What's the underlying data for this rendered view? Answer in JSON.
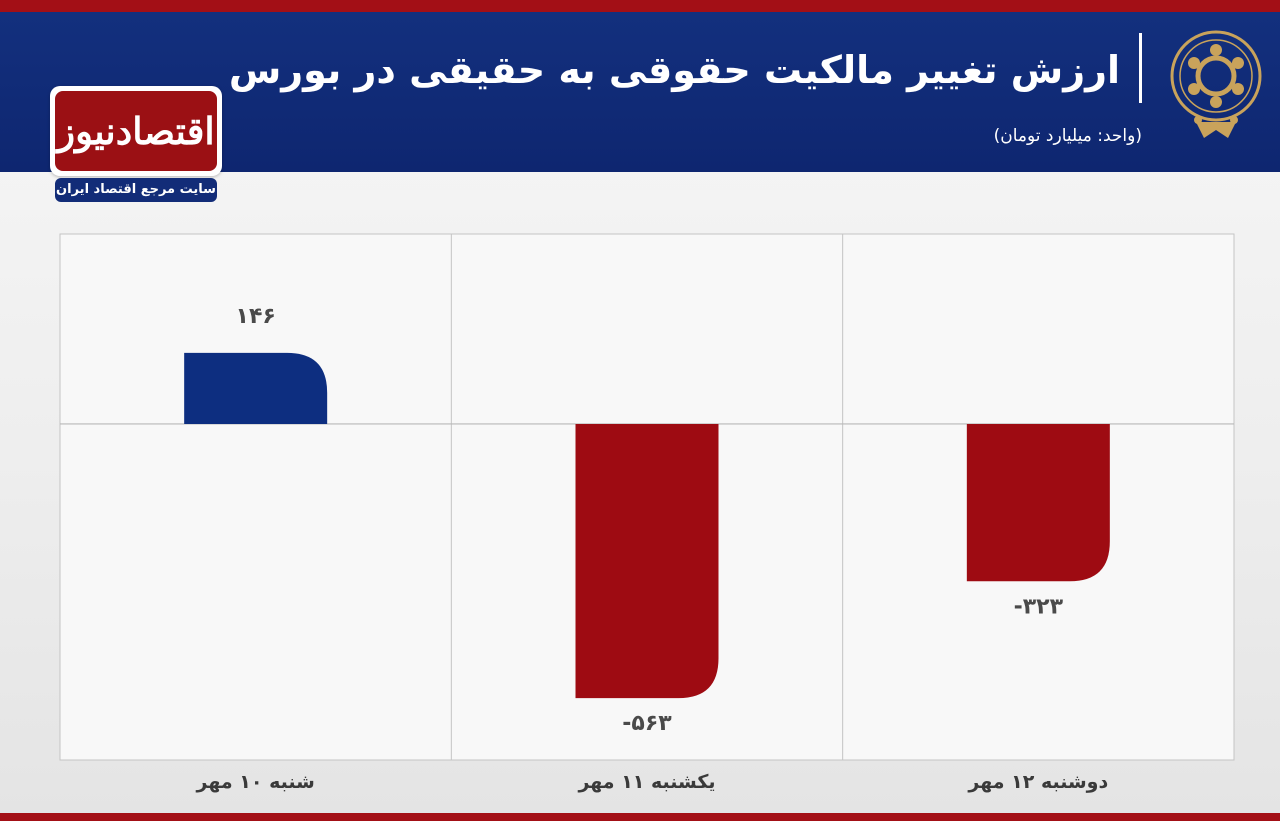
{
  "header": {
    "title": "ارزش تغییر مالکیت حقوقی به حقیقی در بورس",
    "unit": "(واحد: میلیارد تومان)",
    "emblem_icon": "stock-exchange-emblem-icon"
  },
  "logo": {
    "name": "اقتصادنیوز",
    "tagline": "سایت مرجع اقتصاد ایران"
  },
  "colors": {
    "header_bg": "#13307e",
    "stripe": "#a30f16",
    "positive": "#0d2e80",
    "negative": "#9e0b12",
    "gold": "#c9a35b"
  },
  "chart_data": {
    "type": "bar",
    "title": "ارزش تغییر مالکیت حقوقی به حقیقی در بورس",
    "ylabel": "(واحد: میلیارد تومان)",
    "categories": [
      "شنبه ۱۰ مهر",
      "یکشنبه ۱۱ مهر",
      "دوشنبه ۱۲ مهر"
    ],
    "values": [
      146,
      -563,
      -323
    ],
    "value_labels": [
      "۱۴۶",
      "-۵۶۳",
      "-۳۲۳"
    ],
    "ylim": [
      -690,
      390
    ],
    "grid": true,
    "legend": false
  }
}
